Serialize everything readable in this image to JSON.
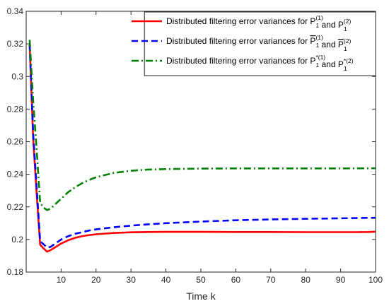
{
  "chart_data": {
    "type": "line",
    "title": "",
    "xlabel": "Time k",
    "ylabel": "",
    "xlim": [
      0,
      100
    ],
    "ylim": [
      0.18,
      0.34
    ],
    "xticks": [
      10,
      20,
      30,
      40,
      50,
      60,
      70,
      80,
      90,
      100
    ],
    "yticks": [
      0.18,
      0.2,
      0.22,
      0.24,
      0.26,
      0.28,
      0.3,
      0.32,
      0.34
    ],
    "grid": false,
    "legend_position": "top-right",
    "series": [
      {
        "legend_prefix": "Distributed filtering error variances for ",
        "sym1": "P",
        "sup1": "(1)",
        "sub1": "1",
        "conj": " and ",
        "sym2": "P",
        "sup2": "(2)",
        "sub2": "1",
        "color": "#ff0000",
        "dash": "solid",
        "x": [
          1,
          2,
          3,
          4,
          5,
          6,
          7,
          8,
          10,
          12,
          14,
          16,
          18,
          20,
          25,
          30,
          35,
          40,
          50,
          60,
          70,
          80,
          90,
          95,
          98,
          100
        ],
        "y": [
          0.3195,
          0.262,
          0.228,
          0.1968,
          0.1945,
          0.1925,
          0.1935,
          0.1948,
          0.1975,
          0.1995,
          0.201,
          0.202,
          0.2027,
          0.2032,
          0.204,
          0.2044,
          0.2046,
          0.2047,
          0.2047,
          0.2046,
          0.2046,
          0.2045,
          0.2045,
          0.2045,
          0.2046,
          0.2048
        ]
      },
      {
        "legend_prefix": "Distributed filtering error variances for ",
        "sym1": "P",
        "sup1": "(1)",
        "sub1": "1",
        "conj": " and ",
        "sym2": "P",
        "sup2": "(2)",
        "sub2": "1",
        "bar": true,
        "color": "#0000ff",
        "dash": "dashed",
        "x": [
          1,
          2,
          3,
          4,
          5,
          6,
          7,
          8,
          10,
          12,
          14,
          16,
          18,
          20,
          25,
          30,
          35,
          40,
          50,
          60,
          70,
          80,
          90,
          100
        ],
        "y": [
          0.3195,
          0.265,
          0.232,
          0.199,
          0.197,
          0.195,
          0.1955,
          0.197,
          0.2,
          0.202,
          0.2035,
          0.2045,
          0.2055,
          0.2062,
          0.2075,
          0.2085,
          0.2093,
          0.21,
          0.211,
          0.2118,
          0.2123,
          0.2127,
          0.213,
          0.2133
        ]
      },
      {
        "legend_prefix": "Distributed filtering error variances for ",
        "sym1": "P",
        "sup1": "*(1)",
        "sub1": "1",
        "conj": " and ",
        "sym2": "P",
        "sup2": "*(2)",
        "sub2": "1",
        "color": "#008000",
        "dash": "dashdot",
        "x": [
          1,
          2,
          3,
          4,
          5,
          6,
          7,
          8,
          10,
          12,
          14,
          16,
          18,
          20,
          25,
          30,
          35,
          40,
          50,
          60,
          70,
          80,
          90,
          100
        ],
        "y": [
          0.3225,
          0.285,
          0.255,
          0.2225,
          0.2195,
          0.218,
          0.219,
          0.221,
          0.225,
          0.229,
          0.232,
          0.2345,
          0.2365,
          0.2382,
          0.2408,
          0.2422,
          0.2429,
          0.2432,
          0.2435,
          0.2436,
          0.2436,
          0.2436,
          0.2436,
          0.2437
        ]
      }
    ]
  }
}
